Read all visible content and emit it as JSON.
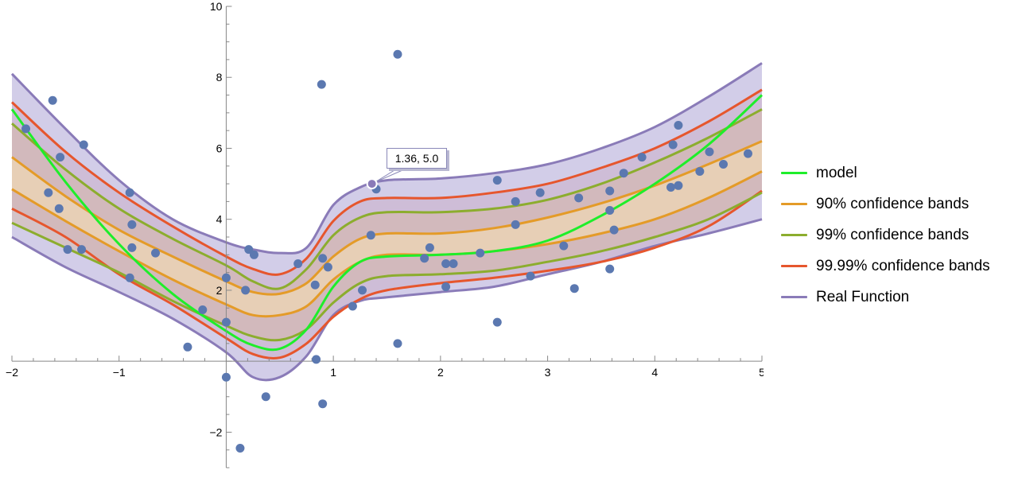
{
  "chart_data": {
    "type": "scatter",
    "xlim": [
      -2,
      5
    ],
    "ylim": [
      -3,
      10
    ],
    "x_ticks": [
      -2,
      -1,
      1,
      2,
      3,
      4,
      5
    ],
    "y_ticks": [
      -2,
      2,
      4,
      6,
      8,
      10
    ],
    "tick_label_text": {
      "x": [
        "−2",
        "−1",
        "1",
        "2",
        "3",
        "4",
        "5"
      ],
      "y": [
        "−2",
        "2",
        "4",
        "6",
        "8",
        "10"
      ]
    },
    "grid": false,
    "legend_position": "right",
    "points": [
      {
        "x": -1.87,
        "y": 6.55
      },
      {
        "x": -1.62,
        "y": 7.35
      },
      {
        "x": -1.66,
        "y": 4.75
      },
      {
        "x": -1.55,
        "y": 5.75
      },
      {
        "x": -1.56,
        "y": 4.3
      },
      {
        "x": -1.48,
        "y": 3.15
      },
      {
        "x": -1.35,
        "y": 3.15
      },
      {
        "x": -1.33,
        "y": 6.1
      },
      {
        "x": -0.9,
        "y": 4.75
      },
      {
        "x": -0.88,
        "y": 3.85
      },
      {
        "x": -0.88,
        "y": 3.2
      },
      {
        "x": -0.9,
        "y": 2.35
      },
      {
        "x": -0.66,
        "y": 3.05
      },
      {
        "x": -0.36,
        "y": 0.4
      },
      {
        "x": -0.22,
        "y": 1.45
      },
      {
        "x": 0.0,
        "y": 2.35
      },
      {
        "x": 0.0,
        "y": 1.1
      },
      {
        "x": 0.0,
        "y": -0.45
      },
      {
        "x": 0.13,
        "y": -2.45
      },
      {
        "x": 0.18,
        "y": 2.0
      },
      {
        "x": 0.21,
        "y": 3.15
      },
      {
        "x": 0.26,
        "y": 3.0
      },
      {
        "x": 0.37,
        "y": -1.0
      },
      {
        "x": 0.67,
        "y": 2.75
      },
      {
        "x": 0.83,
        "y": 2.15
      },
      {
        "x": 0.84,
        "y": 0.05
      },
      {
        "x": 0.89,
        "y": 7.8
      },
      {
        "x": 0.9,
        "y": 2.9
      },
      {
        "x": 0.9,
        "y": -1.2
      },
      {
        "x": 0.95,
        "y": 2.65
      },
      {
        "x": 1.18,
        "y": 1.55
      },
      {
        "x": 1.27,
        "y": 2.0
      },
      {
        "x": 1.35,
        "y": 3.55
      },
      {
        "x": 1.4,
        "y": 4.85
      },
      {
        "x": 1.6,
        "y": 0.5
      },
      {
        "x": 1.6,
        "y": 8.65
      },
      {
        "x": 1.85,
        "y": 2.9
      },
      {
        "x": 1.9,
        "y": 3.2
      },
      {
        "x": 2.05,
        "y": 2.1
      },
      {
        "x": 2.05,
        "y": 2.75
      },
      {
        "x": 2.12,
        "y": 2.75
      },
      {
        "x": 2.37,
        "y": 3.05
      },
      {
        "x": 2.53,
        "y": 5.1
      },
      {
        "x": 2.53,
        "y": 1.1
      },
      {
        "x": 2.7,
        "y": 4.5
      },
      {
        "x": 2.7,
        "y": 3.85
      },
      {
        "x": 2.84,
        "y": 2.4
      },
      {
        "x": 2.93,
        "y": 4.75
      },
      {
        "x": 3.15,
        "y": 3.25
      },
      {
        "x": 3.25,
        "y": 2.05
      },
      {
        "x": 3.29,
        "y": 4.6
      },
      {
        "x": 3.58,
        "y": 4.8
      },
      {
        "x": 3.58,
        "y": 4.25
      },
      {
        "x": 3.58,
        "y": 2.6
      },
      {
        "x": 3.62,
        "y": 3.7
      },
      {
        "x": 3.71,
        "y": 5.3
      },
      {
        "x": 3.88,
        "y": 5.75
      },
      {
        "x": 4.17,
        "y": 6.1
      },
      {
        "x": 4.22,
        "y": 6.65
      },
      {
        "x": 4.15,
        "y": 4.9
      },
      {
        "x": 4.22,
        "y": 4.95
      },
      {
        "x": 4.42,
        "y": 5.35
      },
      {
        "x": 4.51,
        "y": 5.9
      },
      {
        "x": 4.64,
        "y": 5.55
      },
      {
        "x": 4.87,
        "y": 5.85
      }
    ],
    "series": [
      {
        "name": "model",
        "color": "#1eee2a",
        "x": [
          -2,
          -1.5,
          -1,
          -0.5,
          0,
          0.25,
          0.5,
          0.75,
          1,
          1.25,
          1.5,
          2,
          2.5,
          3,
          3.5,
          4,
          4.5,
          5
        ],
        "y": [
          7.1,
          5.05,
          3.3,
          1.9,
          0.85,
          0.45,
          0.35,
          0.9,
          2.1,
          2.8,
          2.95,
          3.0,
          3.1,
          3.4,
          4.1,
          5.0,
          6.1,
          7.5
        ]
      }
    ],
    "bands": [
      {
        "name": "90% confidence bands",
        "color": "#e49b28",
        "x": [
          -2,
          -1.5,
          -1,
          -0.5,
          0,
          0.25,
          0.5,
          0.75,
          1,
          1.25,
          1.5,
          2,
          2.5,
          3,
          3.5,
          4,
          4.5,
          5
        ],
        "upper": [
          5.75,
          4.65,
          3.7,
          2.95,
          2.25,
          1.95,
          1.9,
          2.2,
          2.95,
          3.45,
          3.6,
          3.6,
          3.75,
          4.05,
          4.45,
          4.95,
          5.55,
          6.2
        ],
        "lower": [
          4.85,
          3.95,
          3.1,
          2.3,
          1.6,
          1.3,
          1.3,
          1.55,
          2.3,
          2.8,
          3.0,
          3.0,
          3.1,
          3.3,
          3.6,
          4.0,
          4.6,
          5.35
        ]
      },
      {
        "name": "99% confidence bands",
        "color": "#8cad2e",
        "x": [
          -2,
          -1.5,
          -1,
          -0.5,
          0,
          0.25,
          0.5,
          0.75,
          1,
          1.25,
          1.5,
          2,
          2.5,
          3,
          3.5,
          4,
          4.5,
          5
        ],
        "upper": [
          6.7,
          5.4,
          4.3,
          3.45,
          2.7,
          2.25,
          2.05,
          2.6,
          3.55,
          4.05,
          4.2,
          4.2,
          4.3,
          4.55,
          5.0,
          5.6,
          6.3,
          7.1
        ],
        "lower": [
          3.9,
          3.2,
          2.5,
          1.7,
          1.0,
          0.7,
          0.6,
          0.9,
          1.65,
          2.2,
          2.4,
          2.45,
          2.55,
          2.8,
          3.1,
          3.5,
          4.0,
          4.75
        ]
      },
      {
        "name": "99.99% confidence bands",
        "color": "#e6562d",
        "x": [
          -2,
          -1.5,
          -1,
          -0.5,
          0,
          0.25,
          0.5,
          0.75,
          1,
          1.25,
          1.5,
          2,
          2.5,
          3,
          3.5,
          4,
          4.5,
          5
        ],
        "upper": [
          7.3,
          5.9,
          4.75,
          3.8,
          2.95,
          2.6,
          2.45,
          2.9,
          3.95,
          4.5,
          4.6,
          4.6,
          4.75,
          5.0,
          5.45,
          6.0,
          6.75,
          7.65
        ],
        "lower": [
          4.3,
          3.5,
          2.45,
          1.6,
          0.65,
          0.2,
          0.1,
          0.5,
          1.25,
          1.75,
          2.0,
          2.2,
          2.35,
          2.55,
          2.8,
          3.2,
          3.8,
          4.8
        ]
      },
      {
        "name": "Real Function",
        "color": "#8a7bb8",
        "x": [
          -2,
          -1.5,
          -1,
          -0.5,
          0,
          0.25,
          0.5,
          0.75,
          1,
          1.25,
          1.5,
          2,
          2.5,
          3,
          3.5,
          4,
          4.5,
          5
        ],
        "upper": [
          8.1,
          6.55,
          5.1,
          4.0,
          3.35,
          3.15,
          3.05,
          3.2,
          4.4,
          4.9,
          5.1,
          5.15,
          5.3,
          5.55,
          6.0,
          6.6,
          7.45,
          8.4
        ],
        "lower": [
          3.5,
          2.65,
          1.95,
          1.2,
          0.25,
          -0.45,
          -0.45,
          0.15,
          1.3,
          1.7,
          1.8,
          1.95,
          2.1,
          2.45,
          2.8,
          3.25,
          3.6,
          4.0
        ]
      }
    ],
    "highlighted_point": {
      "x": 1.36,
      "y": 5.0,
      "label": "1.36, 5.0"
    }
  },
  "legend": {
    "items": [
      {
        "label": "model",
        "color": "#1eee2a"
      },
      {
        "label": "90% confidence bands",
        "color": "#e49b28"
      },
      {
        "label": "99% confidence bands",
        "color": "#8cad2e"
      },
      {
        "label": "99.99% confidence bands",
        "color": "#e6562d"
      },
      {
        "label": "Real Function",
        "color": "#8a7bb8"
      }
    ]
  },
  "colors": {
    "point": "#5b78b0",
    "outer_band_fill": "#d2cde8",
    "band_fill": "#efd9b4",
    "axis": "#888888"
  }
}
